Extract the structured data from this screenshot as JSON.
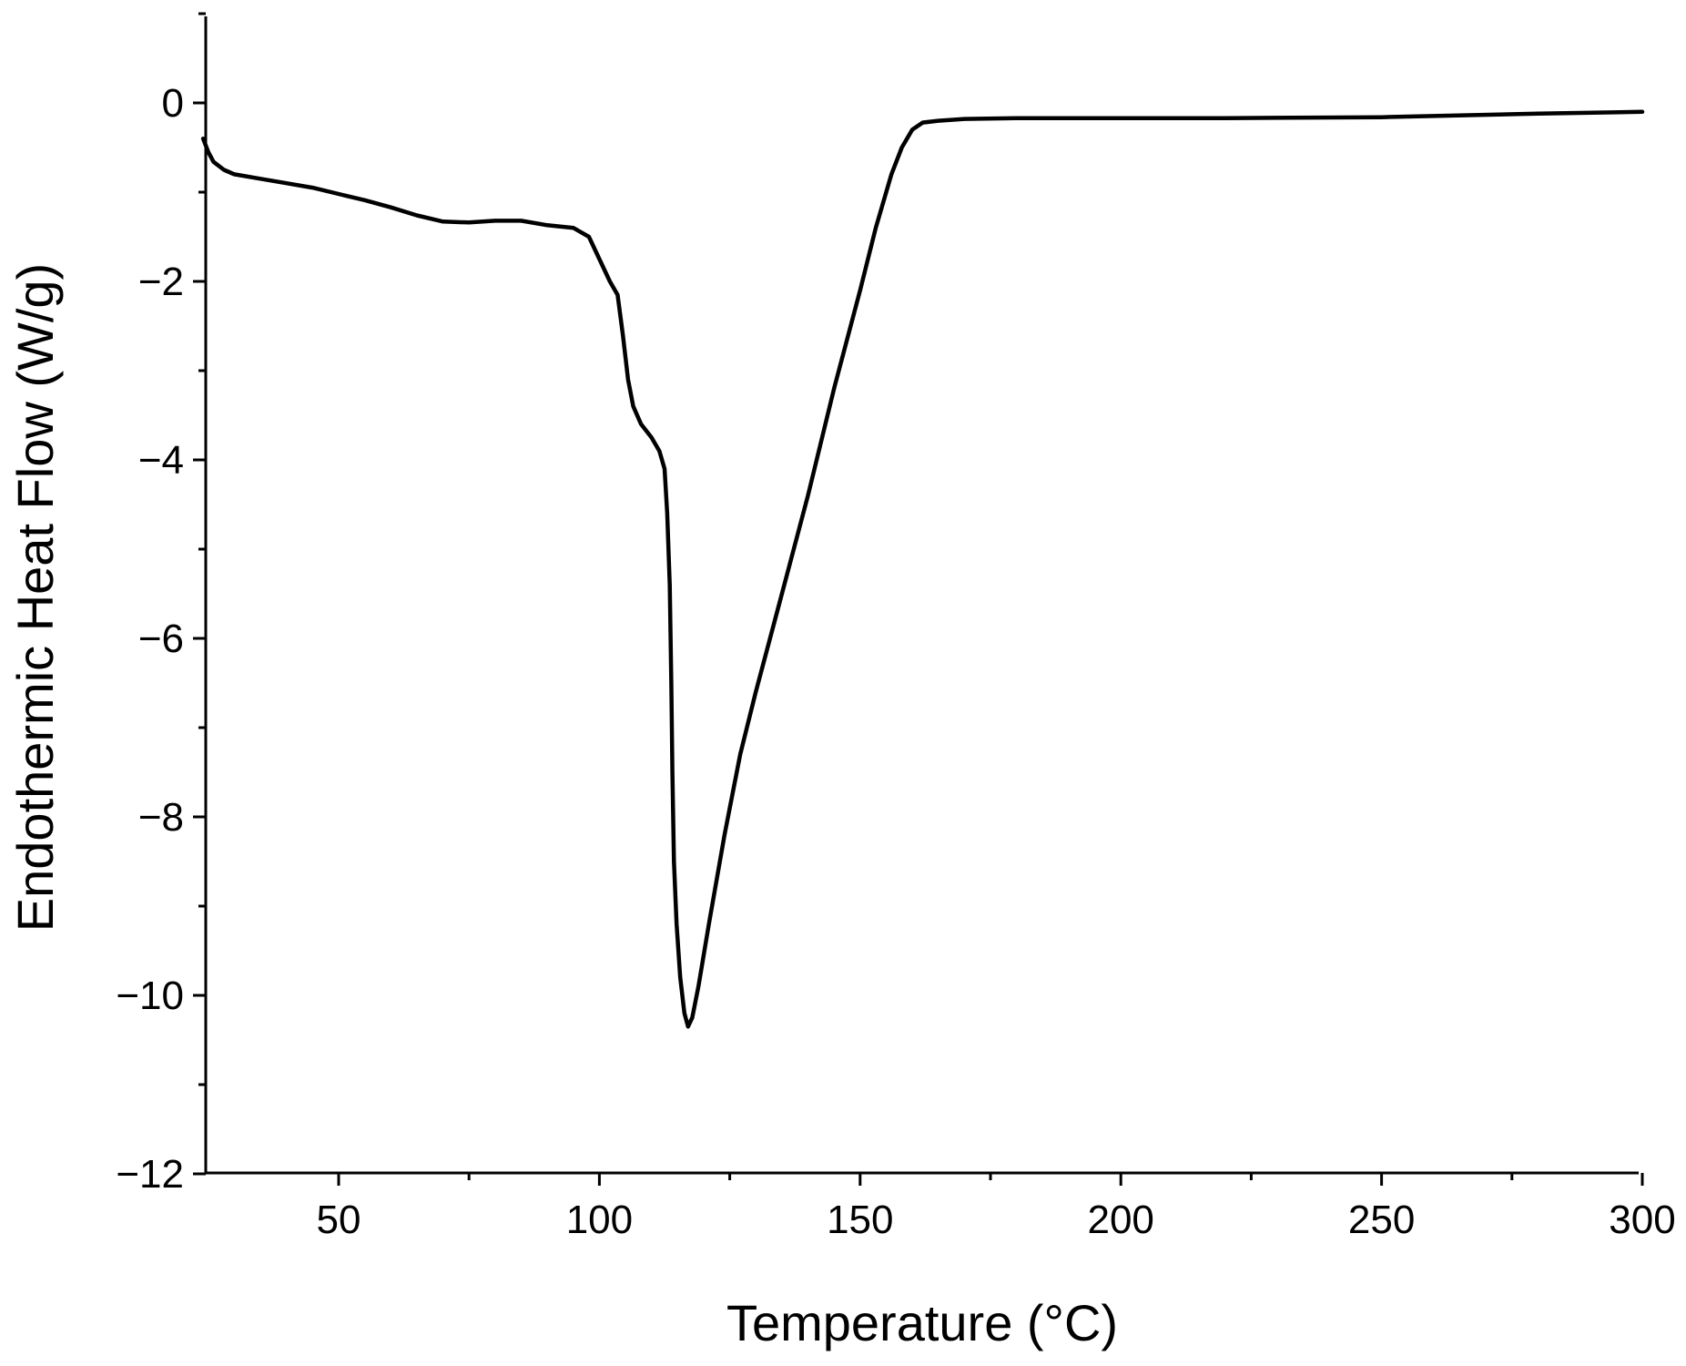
{
  "chart_data": {
    "type": "line",
    "title": "",
    "xlabel": "Temperature (°C)",
    "ylabel": "Endothermic Heat Flow (W/g)",
    "xlim": [
      24,
      300
    ],
    "ylim": [
      -12,
      1
    ],
    "x_ticks": [
      50,
      100,
      150,
      200,
      250,
      300
    ],
    "x_tick_labels": [
      "50",
      "100",
      "150",
      "200",
      "250",
      "300"
    ],
    "y_ticks": [
      0,
      -2,
      -4,
      -6,
      -8,
      -10,
      -12
    ],
    "y_tick_labels": [
      "0",
      "−2",
      "−4",
      "−6",
      "−8",
      "−10",
      "−12"
    ],
    "grid": false,
    "legend": "none",
    "series": [
      {
        "color": "#000000",
        "points": [
          [
            24,
            -0.4
          ],
          [
            25,
            -0.55
          ],
          [
            26,
            -0.66
          ],
          [
            28,
            -0.75
          ],
          [
            30,
            -0.8
          ],
          [
            35,
            -0.85
          ],
          [
            40,
            -0.9
          ],
          [
            45,
            -0.95
          ],
          [
            50,
            -1.02
          ],
          [
            55,
            -1.09
          ],
          [
            60,
            -1.17
          ],
          [
            65,
            -1.26
          ],
          [
            70,
            -1.33
          ],
          [
            75,
            -1.34
          ],
          [
            80,
            -1.32
          ],
          [
            85,
            -1.32
          ],
          [
            90,
            -1.37
          ],
          [
            95,
            -1.4
          ],
          [
            98,
            -1.5
          ],
          [
            100,
            -1.75
          ],
          [
            102,
            -2.0
          ],
          [
            103.5,
            -2.15
          ],
          [
            104.5,
            -2.6
          ],
          [
            105.5,
            -3.1
          ],
          [
            106.5,
            -3.4
          ],
          [
            108,
            -3.6
          ],
          [
            110,
            -3.75
          ],
          [
            111.5,
            -3.9
          ],
          [
            112.5,
            -4.1
          ],
          [
            113,
            -4.6
          ],
          [
            113.5,
            -5.4
          ],
          [
            113.8,
            -6.5
          ],
          [
            114,
            -7.5
          ],
          [
            114.3,
            -8.5
          ],
          [
            114.8,
            -9.2
          ],
          [
            115.5,
            -9.8
          ],
          [
            116.3,
            -10.2
          ],
          [
            117,
            -10.35
          ],
          [
            117.8,
            -10.25
          ],
          [
            119,
            -9.9
          ],
          [
            121,
            -9.2
          ],
          [
            124,
            -8.2
          ],
          [
            127,
            -7.3
          ],
          [
            130,
            -6.6
          ],
          [
            135,
            -5.5
          ],
          [
            140,
            -4.4
          ],
          [
            145,
            -3.2
          ],
          [
            150,
            -2.1
          ],
          [
            153,
            -1.4
          ],
          [
            156,
            -0.8
          ],
          [
            158,
            -0.5
          ],
          [
            160,
            -0.3
          ],
          [
            162,
            -0.22
          ],
          [
            165,
            -0.2
          ],
          [
            170,
            -0.18
          ],
          [
            180,
            -0.17
          ],
          [
            200,
            -0.17
          ],
          [
            220,
            -0.17
          ],
          [
            250,
            -0.16
          ],
          [
            280,
            -0.12
          ],
          [
            300,
            -0.1
          ]
        ]
      }
    ]
  }
}
